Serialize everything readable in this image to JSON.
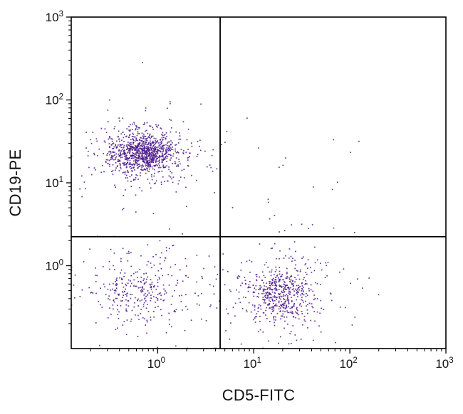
{
  "figure": {
    "kind": "flow-cytometry-dot-plot"
  },
  "chart_data": {
    "type": "scatter",
    "title": "",
    "xlabel": "CD5-FITC",
    "ylabel": "CD19-PE",
    "x_scale": "log10",
    "y_scale": "log10",
    "x_domain_log10": [
      -0.9,
      3
    ],
    "y_domain_log10": [
      -1,
      3
    ],
    "xlim": [
      0.126,
      1000
    ],
    "ylim": [
      0.1,
      1000
    ],
    "x_tick_exponents": [
      0,
      1,
      2,
      3
    ],
    "y_tick_exponents": [
      0,
      1,
      2,
      3
    ],
    "tick_label_base": "10",
    "minor_ticks": "log multiples 2-9 per decade",
    "grid": false,
    "legend": false,
    "quadrant_gates_values": {
      "x": 4.5,
      "y": 2.2
    },
    "quadrant_gates_log10": {
      "x": 0.65,
      "y": 0.35
    },
    "point_color": "#4a1687",
    "axis_color": "#000000",
    "background_color": "#ffffff",
    "populations": [
      {
        "name": "CD19+ CD5- B cells (dense core)",
        "shape": "gaussian",
        "n": 750,
        "center_log10": [
          -0.16,
          1.36
        ],
        "sd_log10": [
          0.17,
          0.115
        ]
      },
      {
        "name": "CD19+ CD5- B cells (halo)",
        "shape": "gaussian",
        "n": 330,
        "center_log10": [
          -0.13,
          1.34
        ],
        "sd_log10": [
          0.32,
          0.22
        ]
      },
      {
        "name": "CD19- CD5- double negative (core)",
        "shape": "gaussian",
        "n": 150,
        "center_log10": [
          -0.25,
          -0.3
        ],
        "sd_log10": [
          0.17,
          0.17
        ]
      },
      {
        "name": "CD19- CD5- double negative (halo)",
        "shape": "gaussian",
        "n": 180,
        "center_log10": [
          -0.12,
          -0.28
        ],
        "sd_log10": [
          0.36,
          0.27
        ]
      },
      {
        "name": "CD5+ CD19- T cells (dense core)",
        "shape": "gaussian",
        "n": 420,
        "center_log10": [
          1.27,
          -0.34
        ],
        "sd_log10": [
          0.17,
          0.18
        ]
      },
      {
        "name": "CD5+ CD19- T cells (halo)",
        "shape": "gaussian",
        "n": 170,
        "center_log10": [
          1.28,
          -0.3
        ],
        "sd_log10": [
          0.33,
          0.3
        ]
      },
      {
        "name": "sparse background",
        "shape": "uniform",
        "n": 40,
        "x_range_log10": [
          -0.85,
          2.15
        ],
        "y_range_log10": [
          -0.95,
          1.8
        ]
      }
    ],
    "outliers_log10": [
      [
        -0.16,
        2.45
      ],
      [
        0.93,
        1.78
      ],
      [
        1.05,
        1.42
      ],
      [
        1.33,
        1.3
      ],
      [
        1.83,
        1.52
      ],
      [
        1.62,
        0.95
      ],
      [
        0.72,
        1.62
      ],
      [
        0.78,
        0.7
      ],
      [
        1.15,
        0.8
      ],
      [
        2.05,
        0.4
      ],
      [
        2.2,
        -0.15
      ],
      [
        0.45,
        1.95
      ],
      [
        0.1,
        1.9
      ],
      [
        -0.5,
        2.0
      ],
      [
        1.5,
        0.5
      ],
      [
        1.9,
        -0.5
      ],
      [
        2.3,
        -0.35
      ],
      [
        1.7,
        -0.8
      ]
    ]
  }
}
